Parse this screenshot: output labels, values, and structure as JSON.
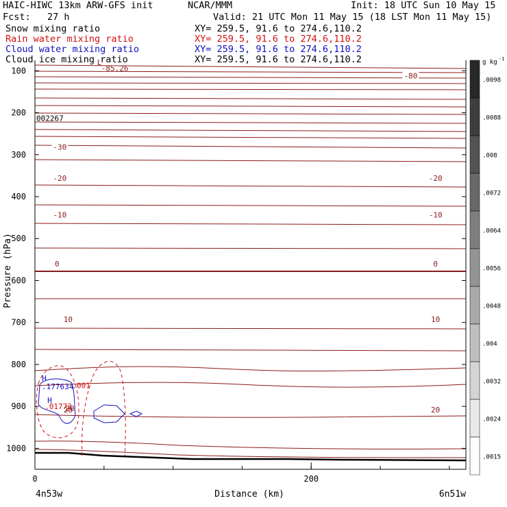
{
  "header": {
    "line1_left": "HAIC-HIWC 13km ARW-GFS init",
    "line1_center": "NCAR/MMM",
    "line1_right": "Init: 18 UTC Sun 10 May 15",
    "line2_left": "Fcst:   27 h",
    "line2_right": "Valid: 21 UTC Mon 11 May 15 (18 LST Mon 11 May 15)",
    "fields": [
      {
        "name": "Snow mixing ratio",
        "xy": "XY= 259.5, 91.6 to 274.6,110.2",
        "color": "#000000"
      },
      {
        "name": "Rain water mixing ratio",
        "xy": "XY= 259.5, 91.6 to 274.6,110.2",
        "color": "#d01010"
      },
      {
        "name": "Cloud water mixing ratio",
        "xy": "XY= 259.5, 91.6 to 274.6,110.2",
        "color": "#1010c0"
      },
      {
        "name": "Cloud ice mixing ratio",
        "xy": "XY= 259.5, 91.6 to 274.6,110.2",
        "color": "#000000"
      }
    ]
  },
  "chart_data": {
    "type": "contour",
    "xlabel": "Distance (km)",
    "ylabel": "Pressure (hPa)",
    "xlim": [
      0,
      312
    ],
    "ylim": [
      1050,
      75
    ],
    "x_ticks": [
      0,
      200
    ],
    "y_ticks": [
      100,
      200,
      300,
      400,
      500,
      600,
      700,
      800,
      900,
      1000
    ],
    "x_start_label": "4n53w",
    "x_end_label": "6n51w",
    "colorbar": {
      "unit": "g kg",
      "unit_exp": "-1",
      "labels": [
        ".0098",
        ".0088",
        ".008",
        ".0072",
        ".0064",
        ".0056",
        ".0048",
        ".004",
        ".0032",
        ".0024",
        ".0015"
      ]
    },
    "temperature_contours": {
      "color": "#8b1a1a",
      "levels": [
        {
          "label": "-80",
          "pressure": 112,
          "x": 272
        },
        {
          "label": "-30",
          "pressure": 282,
          "x": 18
        },
        {
          "label": "-20",
          "pressure": 356,
          "x": 18
        },
        {
          "label": "-20",
          "pressure": 356,
          "x": 290
        },
        {
          "label": "-10",
          "pressure": 443,
          "x": 18
        },
        {
          "label": "-10",
          "pressure": 443,
          "x": 290
        },
        {
          "label": "0",
          "pressure": 560,
          "x": 16
        },
        {
          "label": "0",
          "pressure": 560,
          "x": 290
        },
        {
          "label": "10",
          "pressure": 692,
          "x": 24
        },
        {
          "label": "10",
          "pressure": 692,
          "x": 290
        },
        {
          "label": "20",
          "pressure": 908,
          "x": 290
        },
        {
          "label": "20",
          "pressure": 908,
          "x": 24
        }
      ]
    },
    "annotations": [
      {
        "text": "L",
        "x": 44,
        "pressure": 80,
        "color": "#8b1a1a"
      },
      {
        "text": "-85.26",
        "x": 47,
        "pressure": 94,
        "color": "#8b1a1a"
      },
      {
        "text": "002267",
        "x": 0,
        "pressure": 213,
        "color": "#000000"
      },
      {
        "text": "H",
        "x": 4,
        "pressure": 833,
        "color": "#1010c0"
      },
      {
        "text": ".177634",
        "x": 4,
        "pressure": 852,
        "color": "#1010c0"
      },
      {
        "text": ".001",
        "x": 26,
        "pressure": 850,
        "color": "#d01010"
      },
      {
        "text": "H",
        "x": 8,
        "pressure": 885,
        "color": "#1010c0"
      },
      {
        "text": ".01773",
        "x": 6,
        "pressure": 900,
        "color": "#d01010"
      },
      {
        "text": "20",
        "x": 21,
        "pressure": 905,
        "color": "#8b1a1a"
      }
    ]
  }
}
